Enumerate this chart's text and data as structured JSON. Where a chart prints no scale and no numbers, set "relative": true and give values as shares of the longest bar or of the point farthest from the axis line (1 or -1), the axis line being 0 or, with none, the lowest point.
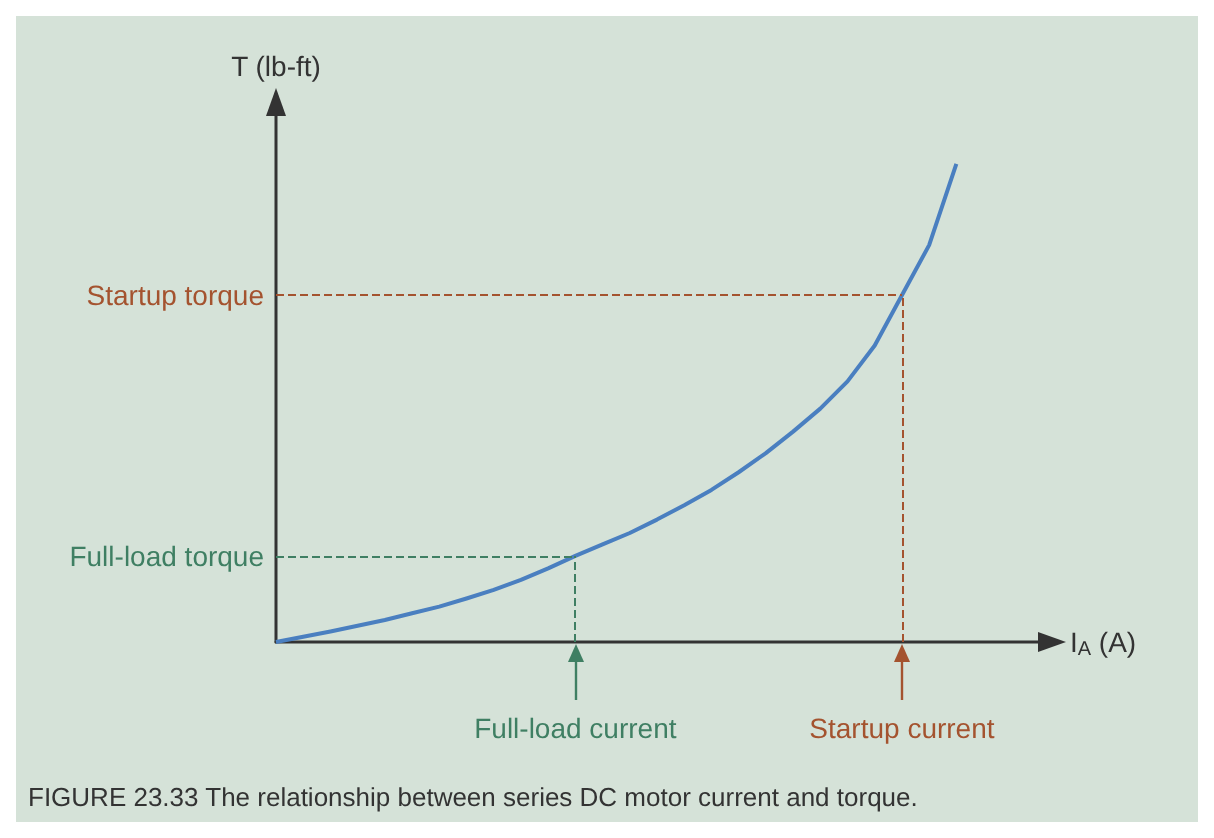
{
  "chart_data": {
    "type": "line",
    "relative": true,
    "xlabel": "I$_{A}$ (A)",
    "ylabel": "T (lb-ft)",
    "categories": [
      null,
      null,
      null,
      null,
      null,
      null,
      null,
      null,
      null,
      null,
      null,
      "Full-load current",
      null,
      null,
      null,
      null,
      null,
      null,
      null,
      null,
      null,
      null,
      null,
      "Startup current",
      null,
      null,
      null,
      null,
      null
    ],
    "series": [
      {
        "color": "#4a7fc0",
        "values": [
          0,
          0.011,
          0.022,
          0.034,
          0.046,
          0.06,
          0.074,
          0.091,
          0.109,
          0.13,
          0.154,
          0.18,
          0.204,
          0.228,
          0.256,
          0.286,
          0.318,
          0.355,
          0.395,
          0.44,
          0.488,
          0.545,
          0.62,
          0.725,
          0.83,
          1,
          null,
          null,
          null
        ]
      }
    ],
    "ref_lines": [
      {
        "axis": "y",
        "value": 0.18,
        "label": "Full-load torque",
        "color": "#3f7f63",
        "line_style": "dashed"
      },
      {
        "axis": "y",
        "value": 0.725,
        "label": "Startup torque",
        "color": "#a4532f",
        "line_style": "dashed"
      },
      {
        "axis": "x",
        "value": "Full-load current",
        "color": "#3f7f63",
        "line_style": "dashed"
      },
      {
        "axis": "x",
        "value": "Startup current",
        "color": "#a4532f",
        "line_style": "dashed"
      }
    ],
    "annotations": [
      "FIGURE 23.33 The relationship between series DC motor current and torque."
    ],
    "grid": false,
    "marker": "none",
    "line_style": "solid"
  }
}
